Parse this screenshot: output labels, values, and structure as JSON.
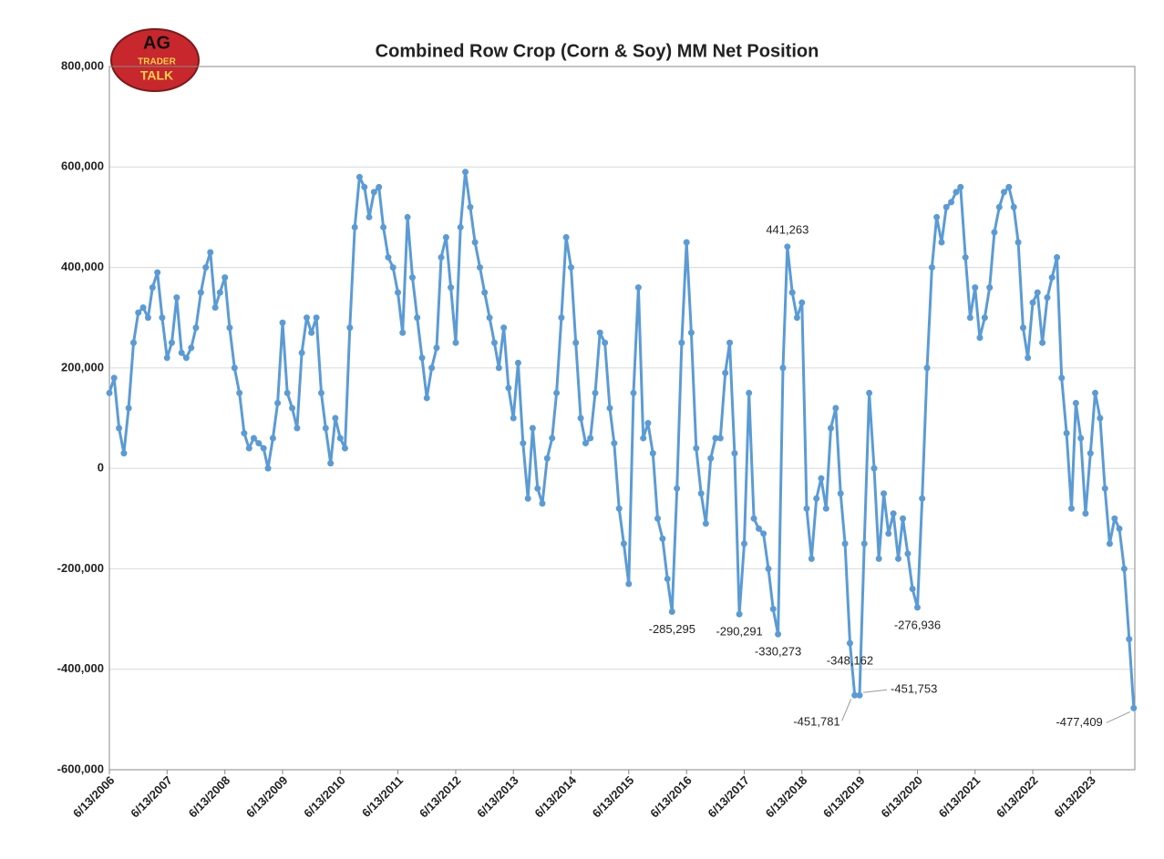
{
  "chart_data": {
    "type": "line",
    "title": "Combined Row Crop (Corn & Soy) MM Net Position",
    "logo": [
      "AG",
      "TRADER",
      "TALK"
    ],
    "grid": true,
    "ylim": [
      -600000,
      800000
    ],
    "yticks": [
      {
        "value": -600000,
        "label": "-600,000"
      },
      {
        "value": -400000,
        "label": "-400,000"
      },
      {
        "value": -200000,
        "label": "-200,000"
      },
      0,
      {
        "value": 200000,
        "label": "200,000"
      },
      {
        "value": 400000,
        "label": "400,000"
      },
      {
        "value": 600000,
        "label": "600,000"
      },
      {
        "value": 800000,
        "label": "800,000"
      }
    ],
    "xlim": [
      "2006-06-13",
      "2024-03-20"
    ],
    "xticks": [
      {
        "value": "2006-06-13",
        "label": "6/13/2006"
      },
      {
        "value": "2007-06-13",
        "label": "6/13/2007"
      },
      {
        "value": "2008-06-13",
        "label": "6/13/2008"
      },
      {
        "value": "2009-06-13",
        "label": "6/13/2009"
      },
      {
        "value": "2010-06-13",
        "label": "6/13/2010"
      },
      {
        "value": "2011-06-13",
        "label": "6/13/2011"
      },
      {
        "value": "2012-06-13",
        "label": "6/13/2012"
      },
      {
        "value": "2013-06-13",
        "label": "6/13/2013"
      },
      {
        "value": "2014-06-13",
        "label": "6/13/2014"
      },
      {
        "value": "2015-06-13",
        "label": "6/13/2015"
      },
      {
        "value": "2016-06-13",
        "label": "6/13/2016"
      },
      {
        "value": "2017-06-13",
        "label": "6/13/2017"
      },
      {
        "value": "2018-06-13",
        "label": "6/13/2018"
      },
      {
        "value": "2019-06-13",
        "label": "6/13/2019"
      },
      {
        "value": "2020-06-13",
        "label": "6/13/2020"
      },
      {
        "value": "2021-06-13",
        "label": "6/13/2021"
      },
      {
        "value": "2022-06-13",
        "label": "6/13/2022"
      },
      {
        "value": "2023-06-13",
        "label": "6/13/2023"
      }
    ],
    "x": [
      "2006-06-13",
      "2006-07-13",
      "2006-08-13",
      "2006-09-13",
      "2006-10-13",
      "2006-11-13",
      "2006-12-13",
      "2007-01-13",
      "2007-02-13",
      "2007-03-13",
      "2007-04-13",
      "2007-05-13",
      "2007-06-13",
      "2007-07-13",
      "2007-08-13",
      "2007-09-13",
      "2007-10-13",
      "2007-11-13",
      "2007-12-13",
      "2008-01-13",
      "2008-02-13",
      "2008-03-13",
      "2008-04-13",
      "2008-05-13",
      "2008-06-13",
      "2008-07-13",
      "2008-08-13",
      "2008-09-13",
      "2008-10-13",
      "2008-11-13",
      "2008-12-13",
      "2009-01-13",
      "2009-02-13",
      "2009-03-13",
      "2009-04-13",
      "2009-05-13",
      "2009-06-13",
      "2009-07-13",
      "2009-08-13",
      "2009-09-13",
      "2009-10-13",
      "2009-11-13",
      "2009-12-13",
      "2010-01-13",
      "2010-02-13",
      "2010-03-13",
      "2010-04-13",
      "2010-05-13",
      "2010-06-13",
      "2010-07-13",
      "2010-08-13",
      "2010-09-13",
      "2010-10-13",
      "2010-11-13",
      "2010-12-13",
      "2011-01-13",
      "2011-02-13",
      "2011-03-13",
      "2011-04-13",
      "2011-05-13",
      "2011-06-13",
      "2011-07-13",
      "2011-08-13",
      "2011-09-13",
      "2011-10-13",
      "2011-11-13",
      "2011-12-13",
      "2012-01-13",
      "2012-02-13",
      "2012-03-13",
      "2012-04-13",
      "2012-05-13",
      "2012-06-13",
      "2012-07-13",
      "2012-08-13",
      "2012-09-13",
      "2012-10-13",
      "2012-11-13",
      "2012-12-13",
      "2013-01-13",
      "2013-02-13",
      "2013-03-13",
      "2013-04-13",
      "2013-05-13",
      "2013-06-13",
      "2013-07-13",
      "2013-08-13",
      "2013-09-13",
      "2013-10-13",
      "2013-11-13",
      "2013-12-13",
      "2014-01-13",
      "2014-02-13",
      "2014-03-13",
      "2014-04-13",
      "2014-05-13",
      "2014-06-13",
      "2014-07-13",
      "2014-08-13",
      "2014-09-13",
      "2014-10-13",
      "2014-11-13",
      "2014-12-13",
      "2015-01-13",
      "2015-02-13",
      "2015-03-13",
      "2015-04-13",
      "2015-05-13",
      "2015-06-13",
      "2015-07-13",
      "2015-08-13",
      "2015-09-13",
      "2015-10-13",
      "2015-11-13",
      "2015-12-13",
      "2016-01-13",
      "2016-02-13",
      "2016-03-13",
      "2016-04-13",
      "2016-05-13",
      "2016-06-13",
      "2016-07-13",
      "2016-08-13",
      "2016-09-13",
      "2016-10-13",
      "2016-11-13",
      "2016-12-13",
      "2017-01-13",
      "2017-02-13",
      "2017-03-13",
      "2017-04-13",
      "2017-05-13",
      "2017-06-13",
      "2017-07-13",
      "2017-08-13",
      "2017-09-13",
      "2017-10-13",
      "2017-11-13",
      "2017-12-13",
      "2018-01-13",
      "2018-02-13",
      "2018-03-13",
      "2018-04-13",
      "2018-05-13",
      "2018-06-13",
      "2018-07-13",
      "2018-08-13",
      "2018-09-13",
      "2018-10-13",
      "2018-11-13",
      "2018-12-13",
      "2019-01-13",
      "2019-02-13",
      "2019-03-13",
      "2019-04-13",
      "2019-05-13",
      "2019-06-13",
      "2019-07-13",
      "2019-08-13",
      "2019-09-13",
      "2019-10-13",
      "2019-11-13",
      "2019-12-13",
      "2020-01-13",
      "2020-02-13",
      "2020-03-13",
      "2020-04-13",
      "2020-05-13",
      "2020-06-13",
      "2020-07-13",
      "2020-08-13",
      "2020-09-13",
      "2020-10-13",
      "2020-11-13",
      "2020-12-13",
      "2021-01-13",
      "2021-02-13",
      "2021-03-13",
      "2021-04-13",
      "2021-05-13",
      "2021-06-13",
      "2021-07-13",
      "2021-08-13",
      "2021-09-13",
      "2021-10-13",
      "2021-11-13",
      "2021-12-13",
      "2022-01-13",
      "2022-02-13",
      "2022-03-13",
      "2022-04-13",
      "2022-05-13",
      "2022-06-13",
      "2022-07-13",
      "2022-08-13",
      "2022-09-13",
      "2022-10-13",
      "2022-11-13",
      "2022-12-13",
      "2023-01-13",
      "2023-02-13",
      "2023-03-13",
      "2023-04-13",
      "2023-05-13",
      "2023-06-13",
      "2023-07-13",
      "2023-08-13",
      "2023-09-13",
      "2023-10-13",
      "2023-11-13",
      "2023-12-13",
      "2024-01-13",
      "2024-02-13",
      "2024-03-13"
    ],
    "series": [
      {
        "name": "MM Net Position",
        "color": "#5b9bd5",
        "values": [
          150000,
          180000,
          80000,
          30000,
          120000,
          250000,
          310000,
          320000,
          300000,
          360000,
          390000,
          300000,
          220000,
          250000,
          340000,
          230000,
          220000,
          240000,
          280000,
          350000,
          400000,
          430000,
          320000,
          350000,
          380000,
          280000,
          200000,
          150000,
          70000,
          40000,
          60000,
          50000,
          40000,
          0,
          60000,
          130000,
          290000,
          150000,
          120000,
          80000,
          230000,
          300000,
          270000,
          300000,
          150000,
          80000,
          10000,
          100000,
          60000,
          40000,
          280000,
          480000,
          580000,
          560000,
          500000,
          550000,
          560000,
          480000,
          420000,
          400000,
          350000,
          270000,
          500000,
          380000,
          300000,
          220000,
          140000,
          200000,
          240000,
          420000,
          460000,
          360000,
          250000,
          480000,
          590000,
          520000,
          450000,
          400000,
          350000,
          300000,
          250000,
          200000,
          280000,
          160000,
          100000,
          210000,
          50000,
          -60000,
          80000,
          -40000,
          -70000,
          20000,
          60000,
          150000,
          300000,
          460000,
          400000,
          250000,
          100000,
          50000,
          60000,
          150000,
          270000,
          250000,
          120000,
          50000,
          -80000,
          -150000,
          -230000,
          150000,
          360000,
          60000,
          90000,
          30000,
          -100000,
          -140000,
          -220000,
          -285295,
          -40000,
          250000,
          450000,
          270000,
          40000,
          -50000,
          -110000,
          20000,
          60000,
          60000,
          190000,
          250000,
          30000,
          -290291,
          -150000,
          150000,
          -100000,
          -120000,
          -130000,
          -200000,
          -280000,
          -330273,
          200000,
          441263,
          350000,
          300000,
          330000,
          -80000,
          -180000,
          -60000,
          -20000,
          -80000,
          80000,
          120000,
          -50000,
          -150000,
          -348162,
          -451781,
          -451753,
          -150000,
          150000,
          0,
          -180000,
          -50000,
          -130000,
          -90000,
          -180000,
          -100000,
          -170000,
          -240000,
          -276936,
          -60000,
          200000,
          400000,
          500000,
          450000,
          520000,
          530000,
          550000,
          560000,
          420000,
          300000,
          360000,
          260000,
          300000,
          360000,
          470000,
          520000,
          550000,
          560000,
          520000,
          450000,
          280000,
          220000,
          330000,
          350000,
          250000,
          340000,
          380000,
          420000,
          180000,
          70000,
          -80000,
          130000,
          60000,
          -90000,
          30000,
          150000,
          100000,
          -40000,
          -150000,
          -100000,
          -120000,
          -200000,
          -340000,
          -477409
        ],
        "value_labels": [
          null,
          null,
          null,
          null,
          null,
          null,
          null,
          null,
          null,
          null,
          null,
          null,
          null,
          null,
          null,
          null,
          null,
          null,
          null,
          null,
          null,
          null,
          null,
          null,
          null,
          null,
          null,
          null,
          null,
          null,
          null,
          null,
          null,
          null,
          null,
          null,
          null,
          null,
          null,
          null,
          null,
          null,
          null,
          null,
          null,
          null,
          null,
          null,
          null,
          null,
          null,
          null,
          null,
          null,
          null,
          null,
          null,
          null,
          null,
          null,
          null,
          null,
          null,
          null,
          null,
          null,
          null,
          null,
          null,
          null,
          null,
          null,
          null,
          null,
          null,
          null,
          null,
          null,
          null,
          null,
          null,
          null,
          null,
          null,
          null,
          null,
          null,
          null,
          null,
          null,
          null,
          null,
          null,
          null,
          null,
          null,
          null,
          null,
          null,
          null,
          null,
          null,
          null,
          null,
          null,
          null,
          null,
          null,
          null,
          null,
          null,
          null,
          null,
          null,
          null,
          null,
          null,
          "-285,295",
          null,
          null,
          null,
          null,
          null,
          null,
          null,
          null,
          null,
          null,
          null,
          null,
          null,
          "-290,291",
          null,
          null,
          null,
          null,
          null,
          null,
          null,
          "-330,273",
          null,
          "441,263",
          null,
          null,
          null,
          null,
          null,
          null,
          null,
          null,
          null,
          null,
          null,
          null,
          "-348,162",
          "-451,781",
          "-451,753",
          null,
          null,
          null,
          null,
          null,
          null,
          null,
          null,
          null,
          null,
          null,
          "-276,936",
          null,
          null,
          null,
          null,
          null,
          null,
          null,
          null,
          null,
          null,
          null,
          null,
          null,
          null,
          null,
          null,
          null,
          null,
          null,
          null,
          null,
          null,
          null,
          null,
          null,
          null,
          null,
          null,
          null,
          null,
          null,
          null,
          null,
          null,
          null,
          null,
          null,
          null,
          null,
          null,
          null,
          null,
          null,
          null,
          "-477,409"
        ]
      }
    ]
  }
}
